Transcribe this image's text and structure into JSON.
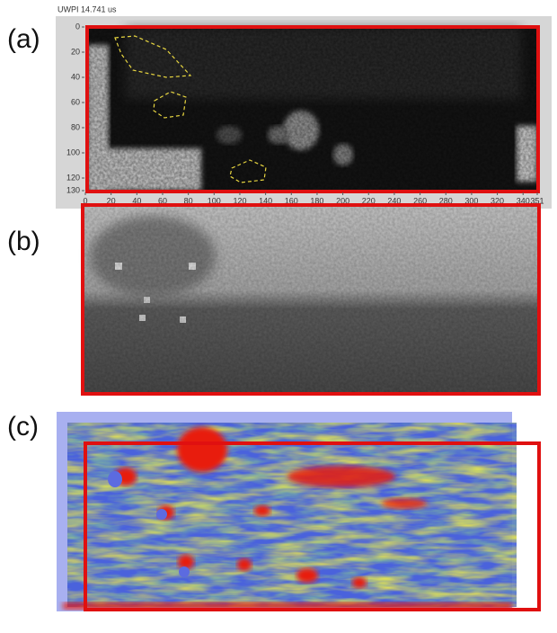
{
  "panels": [
    {
      "label": "(a)",
      "title": "UWPI 14.741 us",
      "xlim": [
        0,
        351
      ],
      "xticks": [
        0,
        20,
        40,
        60,
        80,
        100,
        120,
        140,
        160,
        180,
        200,
        220,
        240,
        260,
        280,
        300,
        320,
        340,
        351
      ],
      "ylim": [
        0,
        130
      ],
      "yticks": [
        0,
        20,
        40,
        60,
        80,
        100,
        120,
        130
      ]
    },
    {
      "label": "(b)"
    },
    {
      "label": "(c)"
    }
  ]
}
